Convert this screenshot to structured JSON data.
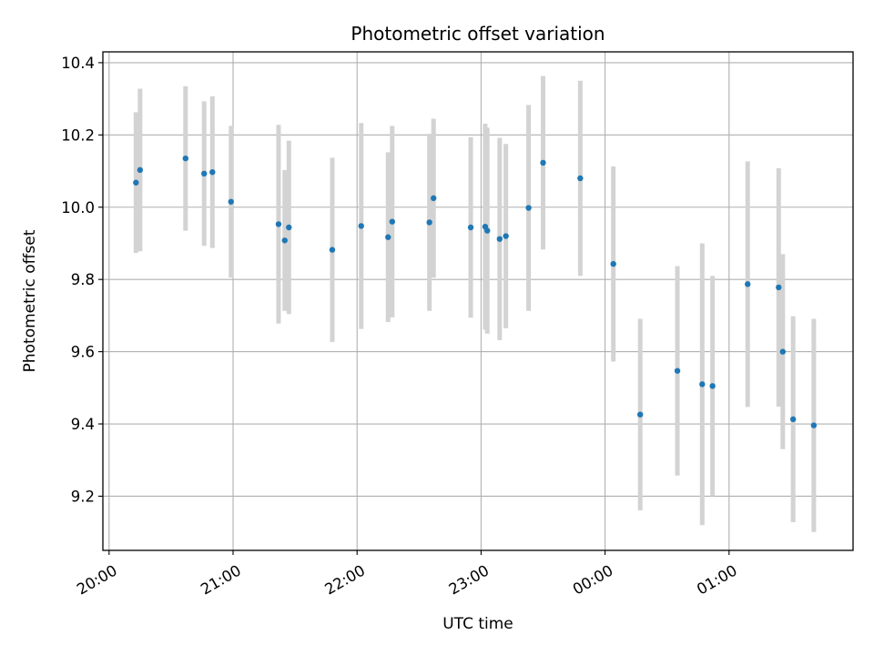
{
  "chart_data": {
    "type": "scatter",
    "title": "Photometric offset variation",
    "xlabel": "UTC time",
    "ylabel": "Photometric offset",
    "x_is_time": true,
    "xlim": [
      "19:57",
      "02:00"
    ],
    "ylim": [
      9.05,
      10.43
    ],
    "xticks": [
      "20:00",
      "21:00",
      "22:00",
      "23:00",
      "00:00",
      "01:00"
    ],
    "yticks": [
      "9.2",
      "9.4",
      "9.6",
      "9.8",
      "10.0",
      "10.2",
      "10.4"
    ],
    "grid": true,
    "colors": {
      "points": "#1f77b4",
      "errorbars": "#d3d3d3",
      "grid": "#b0b0b0",
      "axes": "#000000"
    },
    "series": [
      {
        "points": [
          {
            "x": "20:13",
            "y": 10.068,
            "err": 0.195
          },
          {
            "x": "20:15",
            "y": 10.103,
            "err": 0.225
          },
          {
            "x": "20:37",
            "y": 10.135,
            "err": 0.2
          },
          {
            "x": "20:46",
            "y": 10.093,
            "err": 0.2
          },
          {
            "x": "20:50",
            "y": 10.097,
            "err": 0.21
          },
          {
            "x": "20:59",
            "y": 10.015,
            "err": 0.21
          },
          {
            "x": "21:22",
            "y": 9.953,
            "err": 0.275
          },
          {
            "x": "21:25",
            "y": 9.908,
            "err": 0.195
          },
          {
            "x": "21:27",
            "y": 9.944,
            "err": 0.24
          },
          {
            "x": "21:48",
            "y": 9.882,
            "err": 0.255
          },
          {
            "x": "22:02",
            "y": 9.948,
            "err": 0.285
          },
          {
            "x": "22:15",
            "y": 9.917,
            "err": 0.235
          },
          {
            "x": "22:17",
            "y": 9.96,
            "err": 0.265
          },
          {
            "x": "22:35",
            "y": 9.958,
            "err": 0.245
          },
          {
            "x": "22:37",
            "y": 10.025,
            "err": 0.22
          },
          {
            "x": "22:55",
            "y": 9.944,
            "err": 0.25
          },
          {
            "x": "23:02",
            "y": 9.946,
            "err": 0.285
          },
          {
            "x": "23:03",
            "y": 9.935,
            "err": 0.285
          },
          {
            "x": "23:09",
            "y": 9.912,
            "err": 0.28
          },
          {
            "x": "23:12",
            "y": 9.92,
            "err": 0.255
          },
          {
            "x": "23:23",
            "y": 9.998,
            "err": 0.285
          },
          {
            "x": "23:30",
            "y": 10.123,
            "err": 0.24
          },
          {
            "x": "23:48",
            "y": 10.08,
            "err": 0.27
          },
          {
            "x": "00:04",
            "y": 9.843,
            "err": 0.27
          },
          {
            "x": "00:17",
            "y": 9.426,
            "err": 0.265
          },
          {
            "x": "00:35",
            "y": 9.547,
            "err": 0.29
          },
          {
            "x": "00:47",
            "y": 9.51,
            "err": 0.39
          },
          {
            "x": "00:52",
            "y": 9.505,
            "err": 0.305
          },
          {
            "x": "01:09",
            "y": 9.787,
            "err": 0.34
          },
          {
            "x": "01:24",
            "y": 9.778,
            "err": 0.33
          },
          {
            "x": "01:26",
            "y": 9.6,
            "err": 0.27
          },
          {
            "x": "01:31",
            "y": 9.413,
            "err": 0.285
          },
          {
            "x": "01:41",
            "y": 9.396,
            "err": 0.295
          }
        ]
      }
    ]
  }
}
